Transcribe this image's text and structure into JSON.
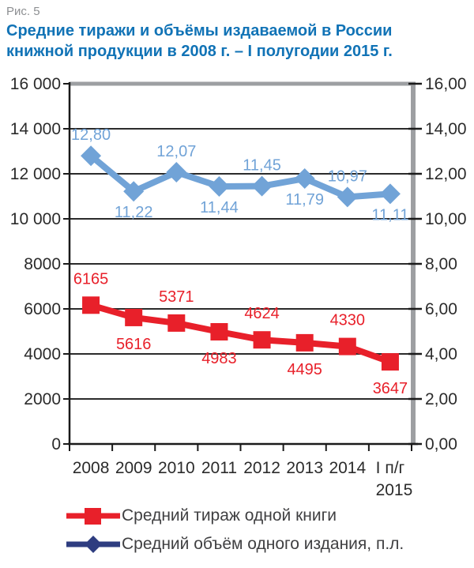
{
  "figure_label": "Рис. 5",
  "title_line1": "Средние тиражи и объёмы издаваемой в России",
  "title_line2": "книжной продукции в 2008 г. – I полугодии 2015 г.",
  "colors": {
    "title_blue": "#1173b6",
    "figure_label_gray": "#8d8f92",
    "grid": "#2b2b2b",
    "axis": "#1a1a1a",
    "frame_gray": "#9d9fa2",
    "tick_text": "#2b2b2b",
    "legend_text": "#3f3f41"
  },
  "chart_data": {
    "type": "line",
    "title": "Средние тиражи и объёмы издаваемой в России книжной продукции в 2008 г. – I полугодии 2015 г.",
    "categories": [
      "2008",
      "2009",
      "2010",
      "2011",
      "2012",
      "2013",
      "2014",
      "I п/г\n2015"
    ],
    "grid": true,
    "legend_position": "bottom-left",
    "left_axis": {
      "min": 0,
      "max": 16000,
      "step": 2000,
      "tick_labels": [
        "0",
        "2000",
        "4000",
        "6000",
        "8000",
        "10 000",
        "12 000",
        "14 000",
        "16 000"
      ]
    },
    "right_axis": {
      "min": 0,
      "max": 16,
      "step": 2,
      "tick_labels": [
        "0,00",
        "2,00",
        "4,00",
        "6,00",
        "8,00",
        "10,00",
        "12,00",
        "14,00",
        "16,00"
      ]
    },
    "series": [
      {
        "name": "Средний тираж одной книги",
        "axis": "left",
        "marker": "square",
        "color": "#e8202a",
        "legend_color": "#e8202a",
        "values": [
          6165,
          5616,
          5371,
          4983,
          4624,
          4495,
          4330,
          3647
        ],
        "labels": [
          "6165",
          "5616",
          "5371",
          "4983",
          "4624",
          "4495",
          "4330",
          "3647"
        ],
        "label_positions": [
          "above",
          "below",
          "above",
          "below",
          "above",
          "below",
          "above",
          "below"
        ]
      },
      {
        "name": "Средний объём одного издания, п.л.",
        "axis": "right",
        "marker": "diamond",
        "color": "#71a3d7",
        "legend_color": "#2e3d80",
        "values": [
          12.8,
          11.22,
          12.07,
          11.44,
          11.45,
          11.79,
          10.97,
          11.11
        ],
        "labels": [
          "12,80",
          "11,22",
          "12,07",
          "11,44",
          "11,45",
          "11,79",
          "10,97",
          "11,11"
        ],
        "label_positions": [
          "above",
          "below",
          "above",
          "below",
          "above",
          "below",
          "above",
          "below"
        ]
      }
    ]
  }
}
